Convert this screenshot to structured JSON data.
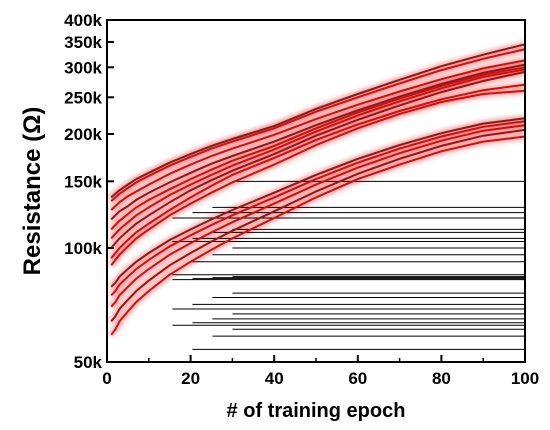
{
  "chart_data": {
    "type": "line",
    "xlabel": "# of training epoch",
    "ylabel": "Resistance (Ω)",
    "xlim": [
      0,
      100
    ],
    "ylim": [
      50000,
      400000
    ],
    "y_scale": "log",
    "x_ticks": [
      0,
      20,
      40,
      60,
      80,
      100
    ],
    "x_tick_labels": [
      "0",
      "20",
      "40",
      "60",
      "80",
      "100"
    ],
    "y_ticks": [
      50000,
      100000,
      150000,
      200000,
      250000,
      300000,
      350000,
      400000
    ],
    "y_tick_labels": [
      "50k",
      "100k",
      "150k",
      "200k",
      "250k",
      "300k",
      "350k",
      "400k"
    ],
    "grid": false,
    "colors": {
      "trained": "#cc1111",
      "trained_dark": "#8b1a1a",
      "horizontal": "#000000",
      "glow": "#ff2a2a"
    },
    "x": [
      1,
      2,
      3,
      5,
      7,
      10,
      15,
      20,
      25,
      30,
      40,
      50,
      60,
      70,
      80,
      90,
      100
    ],
    "series": [
      {
        "values": [
          136000,
          139000,
          142000,
          147000,
          152000,
          158000,
          168000,
          177000,
          186000,
          194000,
          210000,
          233000,
          255000,
          278000,
          302000,
          324000,
          345000
        ]
      },
      {
        "values": [
          133000,
          136000,
          139000,
          144000,
          149000,
          155000,
          165000,
          174000,
          183000,
          191000,
          207000,
          229000,
          250000,
          272000,
          295000,
          316000,
          335000
        ]
      },
      {
        "values": [
          126000,
          129000,
          132000,
          137000,
          141000,
          147000,
          157000,
          166000,
          175000,
          183000,
          199000,
          219000,
          239000,
          259000,
          279000,
          298000,
          313000
        ]
      },
      {
        "values": [
          119000,
          122000,
          125000,
          129000,
          134000,
          140000,
          149000,
          158000,
          167000,
          175000,
          191000,
          211000,
          231000,
          251000,
          271000,
          290000,
          305000
        ]
      },
      {
        "values": [
          112000,
          115000,
          118000,
          123000,
          128000,
          134000,
          143000,
          152000,
          161000,
          170000,
          186000,
          207000,
          228000,
          248000,
          268000,
          287000,
          300000
        ]
      },
      {
        "values": [
          106000,
          109000,
          112000,
          117000,
          122000,
          128000,
          138000,
          147000,
          156000,
          165000,
          182000,
          203000,
          224000,
          244000,
          264000,
          283000,
          296000
        ]
      },
      {
        "values": [
          100000,
          103000,
          106000,
          111000,
          116000,
          122000,
          132000,
          142000,
          151000,
          160000,
          177000,
          198000,
          218000,
          238000,
          258000,
          276000,
          292000
        ]
      },
      {
        "values": [
          94000,
          97000,
          100000,
          105000,
          110000,
          116000,
          126000,
          136000,
          146000,
          156000,
          173000,
          193000,
          212000,
          230000,
          247000,
          261000,
          270000
        ]
      },
      {
        "values": [
          90000,
          93000,
          96000,
          101000,
          106000,
          112000,
          122000,
          131000,
          140000,
          149000,
          166000,
          187000,
          207000,
          226000,
          243000,
          255000,
          260000
        ]
      },
      {
        "values": [
          79000,
          81000,
          84000,
          88000,
          92000,
          97000,
          105000,
          112000,
          119000,
          126000,
          140000,
          156000,
          172000,
          187000,
          201000,
          213000,
          220000
        ]
      },
      {
        "values": [
          75000,
          77000,
          80000,
          84000,
          88000,
          93000,
          101000,
          108000,
          115000,
          122000,
          136000,
          152000,
          168000,
          183000,
          197000,
          209000,
          216000
        ]
      },
      {
        "values": [
          70000,
          72000,
          75000,
          79000,
          83000,
          88000,
          96000,
          103000,
          110000,
          117000,
          131000,
          147000,
          163000,
          178000,
          192000,
          204000,
          211000
        ]
      },
      {
        "values": [
          64000,
          66000,
          69000,
          73000,
          77000,
          82000,
          90000,
          97000,
          104000,
          111000,
          125000,
          141000,
          157000,
          172000,
          186000,
          198000,
          205000
        ]
      },
      {
        "values": [
          59000,
          61000,
          64000,
          68000,
          72000,
          77000,
          85000,
          92000,
          99000,
          106000,
          120000,
          136000,
          152000,
          166000,
          180000,
          191000,
          197000
        ]
      }
    ],
    "horizontal_lines": [
      150000,
      128000,
      124000,
      120000,
      112000,
      110000,
      106000,
      104000,
      100000,
      96000,
      92000,
      85000,
      84000,
      83500,
      83000,
      82500,
      76000,
      74000,
      71000,
      69000,
      67000,
      65000,
      63500,
      62500,
      61000,
      58500,
      54000
    ]
  }
}
